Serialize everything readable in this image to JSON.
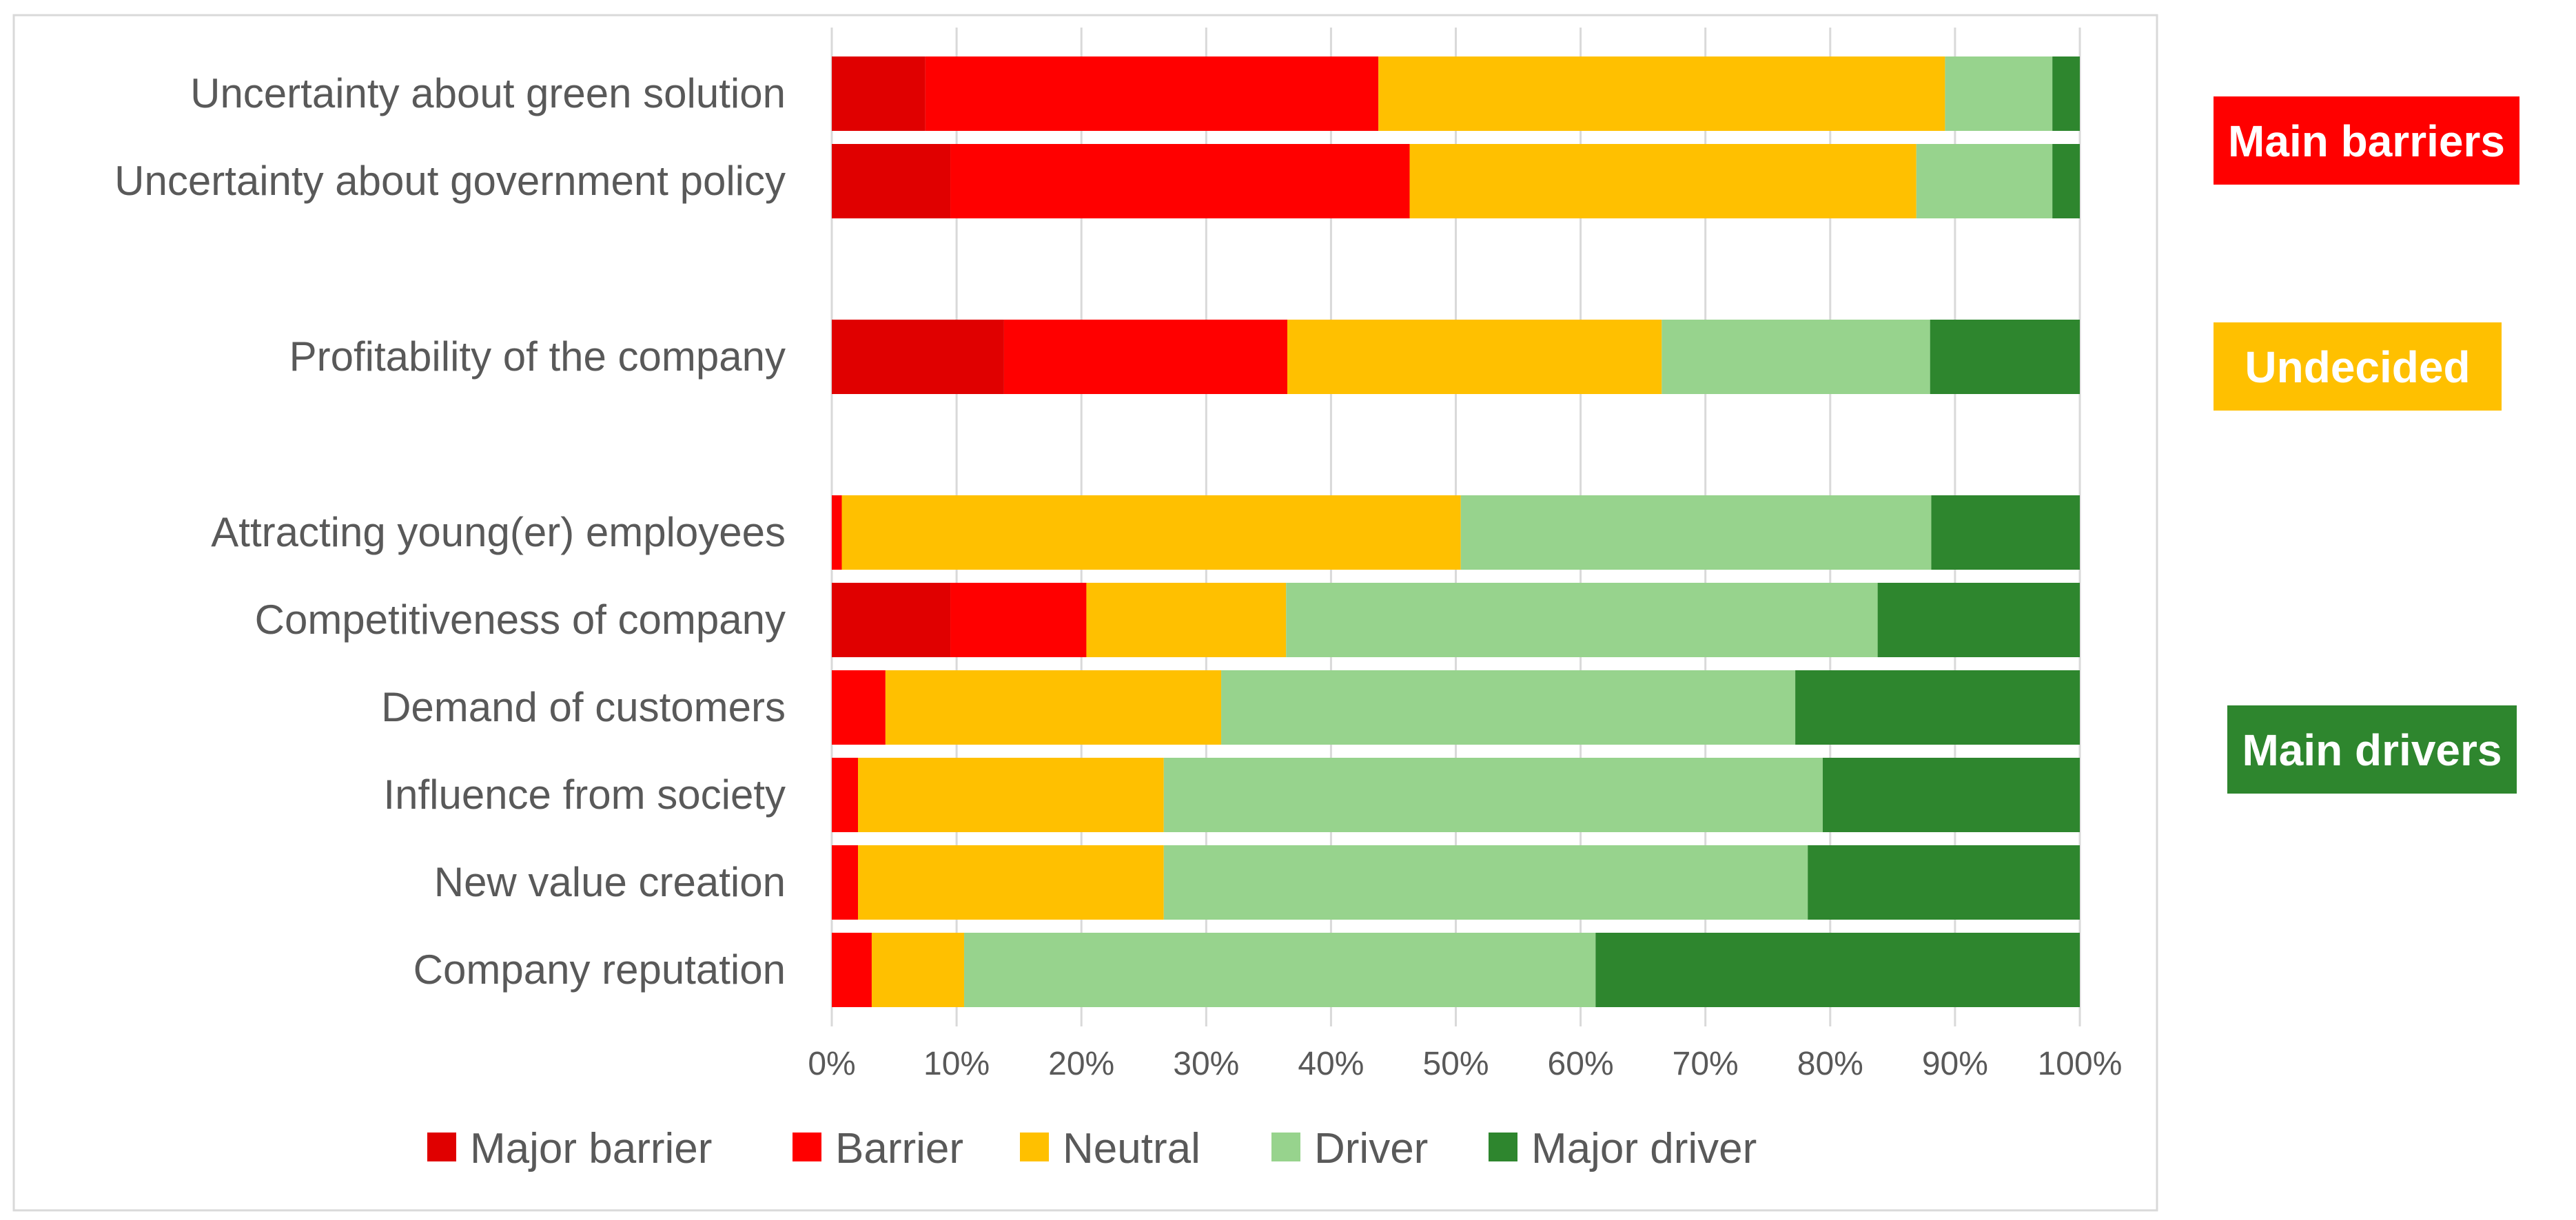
{
  "chart_data": {
    "type": "bar",
    "orientation": "horizontal",
    "stacked": "percent",
    "categories": [
      "Uncertainty about green solution",
      "Uncertainty about government policy",
      "Profitability of the company",
      "Attracting young(er) employees",
      "Competitiveness of company",
      "Demand of customers",
      "Influence from society",
      "New value creation",
      "Company reputation"
    ],
    "series": [
      {
        "name": "Major barrier",
        "color": "#E00000",
        "values": [
          7.5,
          9.5,
          13.8,
          0,
          9.5,
          0,
          0,
          0,
          0
        ]
      },
      {
        "name": "Barrier",
        "color": "#FF0000",
        "values": [
          36.3,
          36.8,
          22.7,
          0.8,
          10.9,
          4.3,
          2.1,
          2.1,
          3.2
        ]
      },
      {
        "name": "Neutral",
        "color": "#FFC000",
        "values": [
          45.4,
          40.6,
          30.0,
          49.6,
          16.0,
          26.9,
          24.5,
          24.5,
          7.4
        ]
      },
      {
        "name": "Driver",
        "color": "#97D38D",
        "values": [
          8.6,
          10.9,
          21.5,
          37.7,
          47.4,
          46.0,
          52.8,
          51.6,
          50.6
        ]
      },
      {
        "name": "Major driver",
        "color": "#2E862E",
        "values": [
          2.2,
          2.2,
          12.0,
          11.9,
          16.2,
          22.8,
          20.6,
          21.8,
          38.8
        ]
      }
    ],
    "xlim": [
      0,
      100
    ],
    "xticks": [
      "0%",
      "10%",
      "20%",
      "30%",
      "40%",
      "50%",
      "60%",
      "70%",
      "80%",
      "90%",
      "100%"
    ],
    "grid": true,
    "legend_position": "bottom",
    "annotations": [
      {
        "text": "Main barriers",
        "color": "#FF0000"
      },
      {
        "text": "Undecided",
        "color": "#FFC000"
      },
      {
        "text": "Main drivers",
        "color": "#2E862E"
      }
    ]
  }
}
